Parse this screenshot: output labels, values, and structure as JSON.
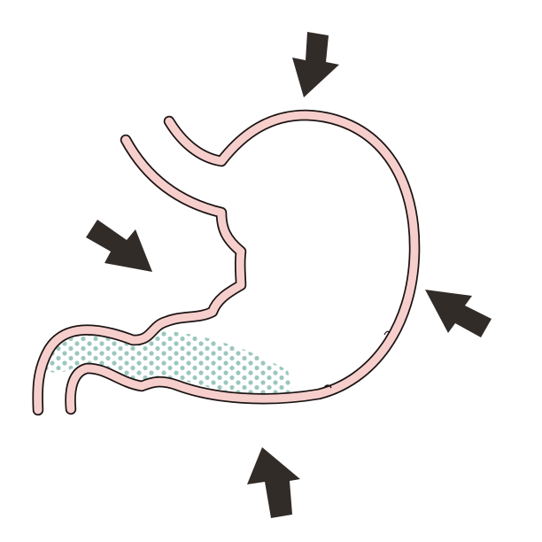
{
  "diagram": {
    "subject": "stomach-compression",
    "colors": {
      "wall_fill": "#f6cfcc",
      "wall_outline": "#1c1414",
      "content_dots": "#9cc7bd",
      "arrow": "#322c29",
      "background": "#ffffff"
    },
    "arrows": [
      {
        "id": "top",
        "pointing": "down"
      },
      {
        "id": "left",
        "pointing": "down-right"
      },
      {
        "id": "right",
        "pointing": "up-left"
      },
      {
        "id": "bottom",
        "pointing": "up"
      }
    ]
  }
}
